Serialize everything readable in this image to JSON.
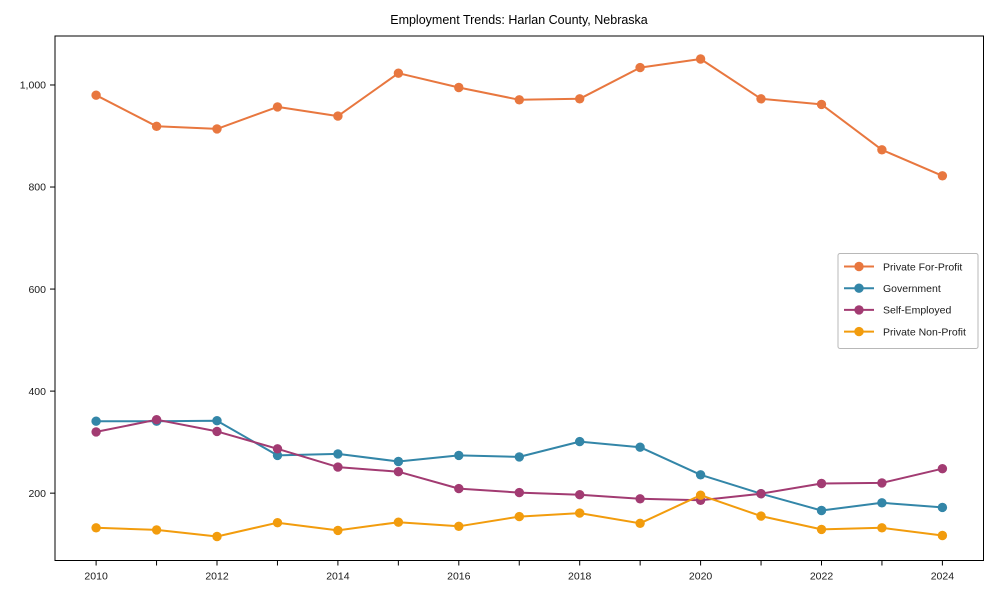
{
  "figure": {
    "title": "Employment Trends: Harlan County, Nebraska",
    "background": "#ffffff",
    "axis_color": "#000000",
    "tick_label_color": "#1a1a1a",
    "legend_border_color": "#b8b8b8"
  },
  "chart_data": {
    "type": "line",
    "title": "Employment Trends: Harlan County, Nebraska",
    "xlabel": "",
    "ylabel": "",
    "x": [
      2010,
      2011,
      2012,
      2013,
      2014,
      2015,
      2016,
      2017,
      2018,
      2019,
      2020,
      2021,
      2022,
      2023,
      2024
    ],
    "series": [
      {
        "name": "Private For-Profit",
        "color": "#E8773F",
        "values": [
          980,
          919,
          914,
          957,
          939,
          1023,
          995,
          971,
          973,
          1034,
          1051,
          973,
          962,
          873,
          822
        ]
      },
      {
        "name": "Government",
        "color": "#3386A8",
        "values": [
          341,
          341,
          342,
          274,
          277,
          262,
          274,
          271,
          301,
          290,
          236,
          199,
          166,
          181,
          172
        ]
      },
      {
        "name": "Self-Employed",
        "color": "#A23B72",
        "values": [
          320,
          344,
          321,
          287,
          251,
          242,
          209,
          201,
          197,
          189,
          186,
          199,
          219,
          220,
          248
        ]
      },
      {
        "name": "Private Non-Profit",
        "color": "#F29C0D",
        "values": [
          132,
          128,
          115,
          142,
          127,
          143,
          135,
          154,
          161,
          141,
          196,
          155,
          129,
          132,
          117
        ]
      }
    ],
    "xlim": [
      2009.32,
      2024.68
    ],
    "ylim": [
      68,
      1096
    ],
    "yticks": [
      200,
      400,
      600,
      800,
      1000
    ],
    "ytick_labels": [
      "200",
      "400",
      "600",
      "800",
      "1,000"
    ],
    "xticks_every_year": true,
    "xtick_labeled_years": [
      2010,
      2012,
      2014,
      2016,
      2018,
      2020,
      2022,
      2024
    ],
    "grid": false,
    "marker": "circle",
    "legend": {
      "position": "right-inset",
      "entries": [
        "Private For-Profit",
        "Government",
        "Self-Employed",
        "Private Non-Profit"
      ]
    }
  }
}
